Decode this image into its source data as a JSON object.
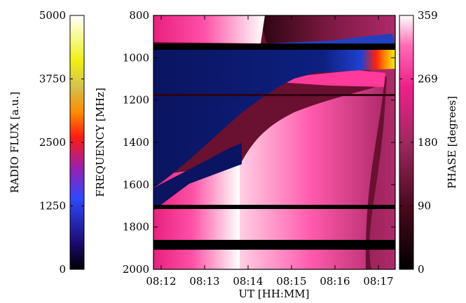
{
  "chart_data": {
    "type": "heatmap",
    "colorbars": [
      {
        "label": "RADIO FLUX [a.u.]",
        "ticks": [
          "0",
          "1250",
          "2500",
          "3750",
          "5000"
        ],
        "range": [
          0,
          5000
        ],
        "colormap": [
          "#000000",
          "#1a0a6e",
          "#3048ff",
          "#9a1fb0",
          "#ff1a10",
          "#ff8c00",
          "#d4c24a",
          "#f0f010",
          "#ffffff"
        ]
      },
      {
        "label": "PHASE [degrees]",
        "ticks": [
          "0",
          "90",
          "180",
          "269",
          "359"
        ],
        "range": [
          0,
          359
        ],
        "colormap": [
          "#000000",
          "#4a0a1e",
          "#a02860",
          "#f0208a",
          "#ff6ab4",
          "#ffffff"
        ]
      }
    ],
    "y_axis": {
      "label": "FREQUENCY [MHz]",
      "ticks": [
        "800",
        "1000",
        "1200",
        "1400",
        "1600",
        "1800",
        "2000"
      ],
      "range": [
        800,
        2000
      ],
      "inverted": true
    },
    "x_axis": {
      "label": "UT [HH:MM]",
      "ticks": [
        "08:12",
        "08:13",
        "08:14",
        "08:15",
        "08:16",
        "08:17"
      ]
    },
    "colors": {
      "radio_burst": "#0c1b6a",
      "phase_high": "#ffffff",
      "phase_mid": "#f0208a",
      "phase_low": "#000000"
    }
  }
}
